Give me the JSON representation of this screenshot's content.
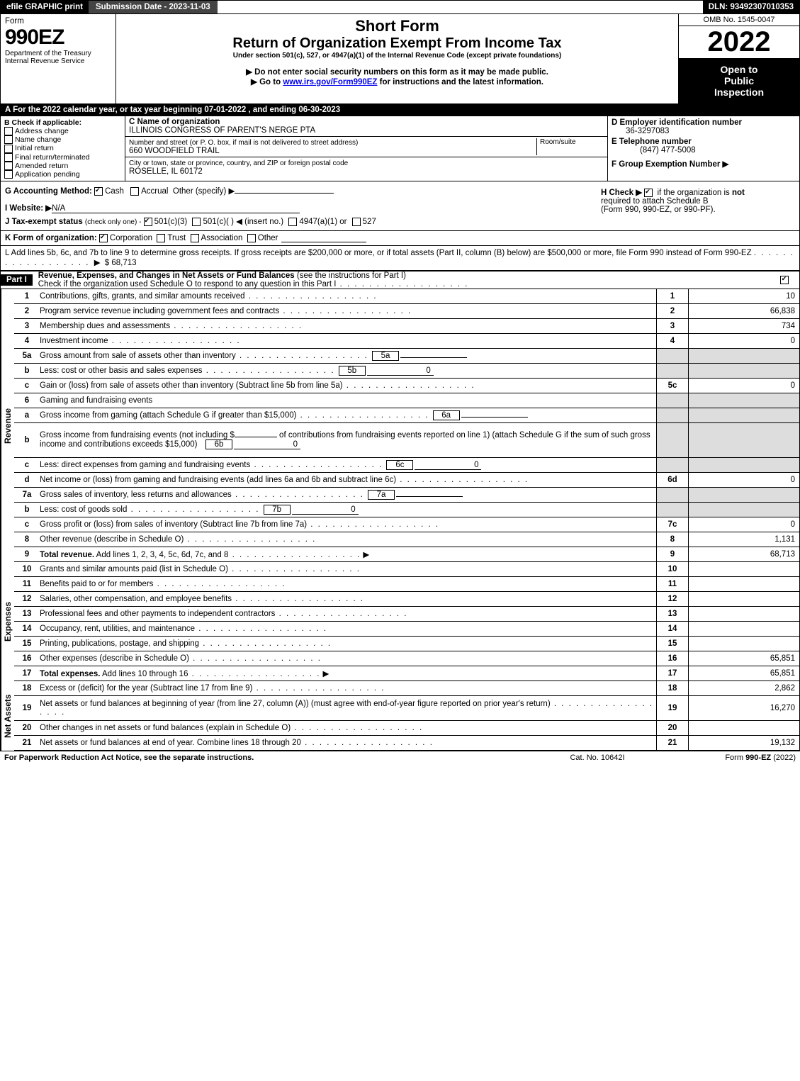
{
  "top": {
    "efile": "efile GRAPHIC print",
    "submission": "Submission Date - 2023-11-03",
    "dln": "DLN: 93492307010353"
  },
  "header": {
    "form_word": "Form",
    "form_no": "990EZ",
    "dept1": "Department of the Treasury",
    "dept2": "Internal Revenue Service",
    "short_form": "Short Form",
    "title": "Return of Organization Exempt From Income Tax",
    "sub1": "Under section 501(c), 527, or 4947(a)(1) of the Internal Revenue Code (except private foundations)",
    "sub2": "▶ Do not enter social security numbers on this form as it may be made public.",
    "sub3_pre": "▶ Go to ",
    "sub3_link": "www.irs.gov/Form990EZ",
    "sub3_post": " for instructions and the latest information.",
    "omb": "OMB No. 1545-0047",
    "year": "2022",
    "open1": "Open to",
    "open2": "Public",
    "open3": "Inspection"
  },
  "secA": "A  For the 2022 calendar year, or tax year beginning 07-01-2022  , and ending 06-30-2023",
  "B": {
    "label": "B  Check if applicable:",
    "opts": [
      "Address change",
      "Name change",
      "Initial return",
      "Final return/terminated",
      "Amended return",
      "Application pending"
    ]
  },
  "C": {
    "name_lbl": "C Name of organization",
    "name": "ILLINOIS CONGRESS OF PARENT'S NERGE PTA",
    "addr_lbl": "Number and street (or P. O. box, if mail is not delivered to street address)",
    "room_lbl": "Room/suite",
    "addr": "660 WOODFIELD TRAIL",
    "city_lbl": "City or town, state or province, country, and ZIP or foreign postal code",
    "city": "ROSELLE, IL  60172"
  },
  "D": {
    "lbl": "D Employer identification number",
    "val": "36-3297083"
  },
  "E": {
    "lbl": "E Telephone number",
    "val": "(847) 477-5008"
  },
  "F": {
    "lbl": "F Group Exemption Number  ▶"
  },
  "G": {
    "lbl": "G Accounting Method:",
    "cash": "Cash",
    "accrual": "Accrual",
    "other": "Other (specify) ▶"
  },
  "H": {
    "txt1": "H  Check ▶",
    "txt2": "if the organization is ",
    "not": "not",
    "txt3": "required to attach Schedule B",
    "txt4": "(Form 990, 990-EZ, or 990-PF)."
  },
  "I": {
    "lbl": "I Website: ▶",
    "val": "N/A"
  },
  "J": {
    "lbl": "J Tax-exempt status",
    "sub": "(check only one) -",
    "a": "501(c)(3)",
    "b": "501(c)(  ) ◀ (insert no.)",
    "c": "4947(a)(1) or",
    "d": "527"
  },
  "K": {
    "lbl": "K Form of organization:",
    "opts": [
      "Corporation",
      "Trust",
      "Association",
      "Other"
    ]
  },
  "L": {
    "txt": "L Add lines 5b, 6c, and 7b to line 9 to determine gross receipts. If gross receipts are $200,000 or more, or if total assets (Part II, column (B) below) are $500,000 or more, file Form 990 instead of Form 990-EZ",
    "amt": "$ 68,713"
  },
  "part1": {
    "tag": "Part I",
    "title": "Revenue, Expenses, and Changes in Net Assets or Fund Balances",
    "see": "(see the instructions for Part I)",
    "check": "Check if the organization used Schedule O to respond to any question in this Part I"
  },
  "vlabels": {
    "rev": "Revenue",
    "exp": "Expenses",
    "na": "Net Assets"
  },
  "lines": {
    "l1": {
      "n": "1",
      "d": "Contributions, gifts, grants, and similar amounts received",
      "box": "1",
      "v": "10"
    },
    "l2": {
      "n": "2",
      "d": "Program service revenue including government fees and contracts",
      "box": "2",
      "v": "66,838"
    },
    "l3": {
      "n": "3",
      "d": "Membership dues and assessments",
      "box": "3",
      "v": "734"
    },
    "l4": {
      "n": "4",
      "d": "Investment income",
      "box": "4",
      "v": "0"
    },
    "l5a": {
      "n": "5a",
      "d": "Gross amount from sale of assets other than inventory",
      "sb": "5a",
      "sv": ""
    },
    "l5b": {
      "n": "b",
      "d": "Less: cost or other basis and sales expenses",
      "sb": "5b",
      "sv": "0"
    },
    "l5c": {
      "n": "c",
      "d": "Gain or (loss) from sale of assets other than inventory (Subtract line 5b from line 5a)",
      "box": "5c",
      "v": "0"
    },
    "l6": {
      "n": "6",
      "d": "Gaming and fundraising events"
    },
    "l6a": {
      "n": "a",
      "d": "Gross income from gaming (attach Schedule G if greater than $15,000)",
      "sb": "6a",
      "sv": ""
    },
    "l6b": {
      "n": "b",
      "d1": "Gross income from fundraising events (not including $",
      "d2": "of contributions from fundraising events reported on line 1) (attach Schedule G if the sum of such gross income and contributions exceeds $15,000)",
      "sb": "6b",
      "sv": "0"
    },
    "l6c": {
      "n": "c",
      "d": "Less: direct expenses from gaming and fundraising events",
      "sb": "6c",
      "sv": "0"
    },
    "l6d": {
      "n": "d",
      "d": "Net income or (loss) from gaming and fundraising events (add lines 6a and 6b and subtract line 6c)",
      "box": "6d",
      "v": "0"
    },
    "l7a": {
      "n": "7a",
      "d": "Gross sales of inventory, less returns and allowances",
      "sb": "7a",
      "sv": ""
    },
    "l7b": {
      "n": "b",
      "d": "Less: cost of goods sold",
      "sb": "7b",
      "sv": "0"
    },
    "l7c": {
      "n": "c",
      "d": "Gross profit or (loss) from sales of inventory (Subtract line 7b from line 7a)",
      "box": "7c",
      "v": "0"
    },
    "l8": {
      "n": "8",
      "d": "Other revenue (describe in Schedule O)",
      "box": "8",
      "v": "1,131"
    },
    "l9": {
      "n": "9",
      "d": "Total revenue. Add lines 1, 2, 3, 4, 5c, 6d, 7c, and 8",
      "box": "9",
      "v": "68,713"
    },
    "l10": {
      "n": "10",
      "d": "Grants and similar amounts paid (list in Schedule O)",
      "box": "10",
      "v": ""
    },
    "l11": {
      "n": "11",
      "d": "Benefits paid to or for members",
      "box": "11",
      "v": ""
    },
    "l12": {
      "n": "12",
      "d": "Salaries, other compensation, and employee benefits",
      "box": "12",
      "v": ""
    },
    "l13": {
      "n": "13",
      "d": "Professional fees and other payments to independent contractors",
      "box": "13",
      "v": ""
    },
    "l14": {
      "n": "14",
      "d": "Occupancy, rent, utilities, and maintenance",
      "box": "14",
      "v": ""
    },
    "l15": {
      "n": "15",
      "d": "Printing, publications, postage, and shipping",
      "box": "15",
      "v": ""
    },
    "l16": {
      "n": "16",
      "d": "Other expenses (describe in Schedule O)",
      "box": "16",
      "v": "65,851"
    },
    "l17": {
      "n": "17",
      "d": "Total expenses. Add lines 10 through 16",
      "box": "17",
      "v": "65,851"
    },
    "l18": {
      "n": "18",
      "d": "Excess or (deficit) for the year (Subtract line 17 from line 9)",
      "box": "18",
      "v": "2,862"
    },
    "l19": {
      "n": "19",
      "d": "Net assets or fund balances at beginning of year (from line 27, column (A)) (must agree with end-of-year figure reported on prior year's return)",
      "box": "19",
      "v": "16,270"
    },
    "l20": {
      "n": "20",
      "d": "Other changes in net assets or fund balances (explain in Schedule O)",
      "box": "20",
      "v": ""
    },
    "l21": {
      "n": "21",
      "d": "Net assets or fund balances at end of year. Combine lines 18 through 20",
      "box": "21",
      "v": "19,132"
    }
  },
  "foot": {
    "left": "For Paperwork Reduction Act Notice, see the separate instructions.",
    "mid": "Cat. No. 10642I",
    "right": "Form 990-EZ (2022)"
  },
  "colors": {
    "black": "#000000",
    "shade": "#dddddd"
  }
}
